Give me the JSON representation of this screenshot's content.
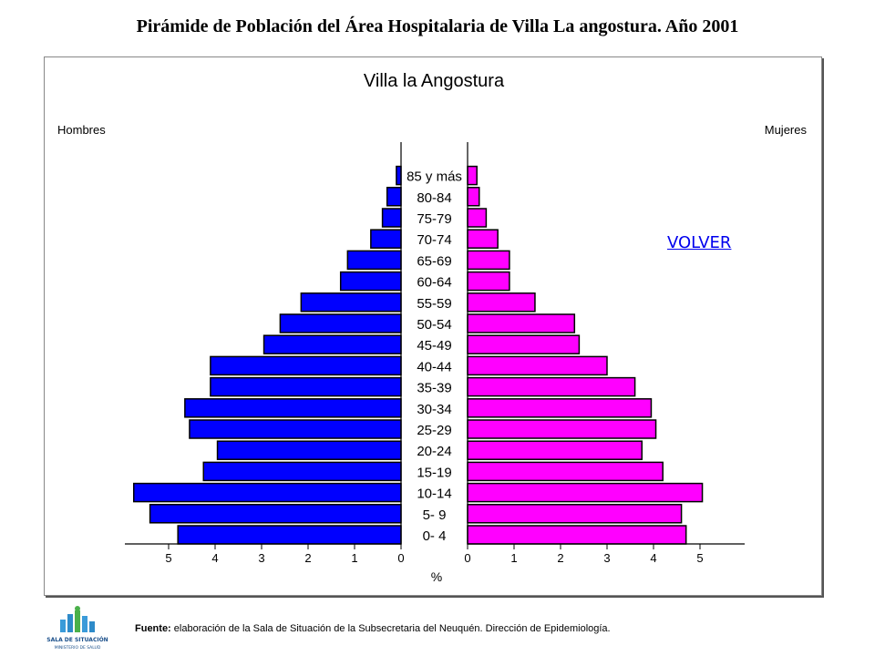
{
  "page": {
    "title": "Pirámide de Población del Área Hospitalaria de  Villa La angostura. Año 2001",
    "volver": "VOLVER",
    "source_label": "Fuente:",
    "source_text": " elaboración de la Sala de Situación de la Subsecretaria del Neuquén. Dirección de Epidemiología.",
    "logo": {
      "icon": "sala-de-situacion-logo",
      "line1": "SALA DE SITUACIÓN",
      "line2": "MINISTERIO DE SALUD"
    }
  },
  "chart_data": {
    "type": "bar",
    "orientation": "horizontal-pyramid",
    "title": "Villa la Angostura",
    "xlabel": "%",
    "left_label": "Hombres",
    "right_label": "Mujeres",
    "categories": [
      "0- 4",
      "5- 9",
      "10-14",
      "15-19",
      "20-24",
      "25-29",
      "30-34",
      "35-39",
      "40-44",
      "45-49",
      "50-54",
      "55-59",
      "60-64",
      "65-69",
      "70-74",
      "75-79",
      "80-84",
      "85 y más"
    ],
    "series": [
      {
        "name": "Hombres",
        "color": "#0000ff",
        "values": [
          4.8,
          5.4,
          5.75,
          4.25,
          3.95,
          4.55,
          4.65,
          4.1,
          4.1,
          2.95,
          2.6,
          2.15,
          1.3,
          1.15,
          0.65,
          0.4,
          0.3,
          0.1
        ]
      },
      {
        "name": "Mujeres",
        "color": "#ff00ff",
        "values": [
          4.7,
          4.6,
          5.05,
          4.2,
          3.75,
          4.05,
          3.95,
          3.6,
          3.0,
          2.4,
          2.3,
          1.45,
          0.9,
          0.9,
          0.65,
          0.4,
          0.25,
          0.2
        ]
      }
    ],
    "xlim": [
      0,
      6
    ],
    "ticks": [
      5,
      4,
      3,
      2,
      1,
      0
    ],
    "right_ticks": [
      0,
      1,
      2,
      3,
      4,
      5
    ],
    "grid": false
  }
}
